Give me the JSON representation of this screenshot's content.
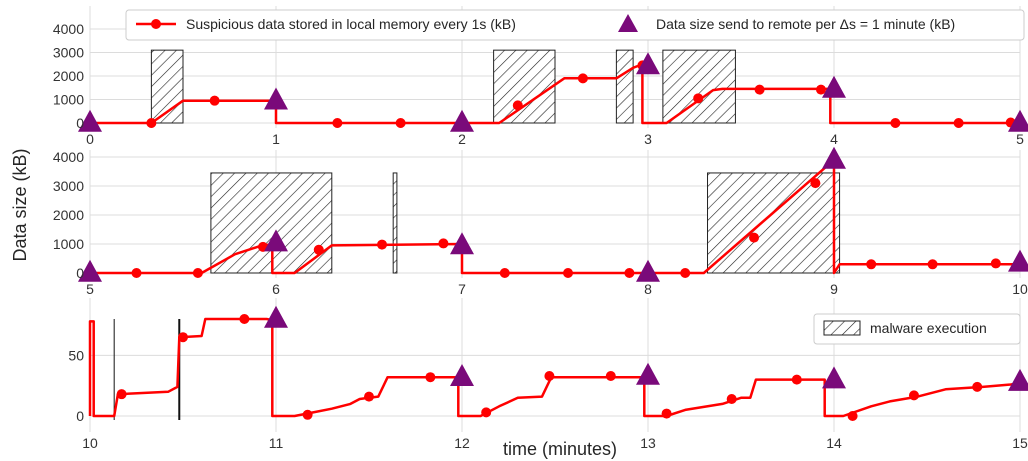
{
  "chart_data": [
    {
      "type": "line",
      "panel": 1,
      "xlim": [
        0,
        5
      ],
      "ylim": [
        0,
        4900
      ],
      "yticks": [
        0,
        1000,
        2000,
        3000,
        4000
      ],
      "xticks": [
        0,
        1,
        2,
        3,
        4,
        5
      ],
      "grid": true,
      "legend": "top",
      "series": [
        {
          "name": "Suspicious data stored in local memory every 1s (kB)",
          "color": "#ff0000",
          "line": [
            [
              0,
              0
            ],
            [
              0.33,
              0
            ],
            [
              0.5,
              950
            ],
            [
              1,
              950
            ],
            [
              1,
              0
            ],
            [
              2.2,
              0
            ],
            [
              2.55,
              1900
            ],
            [
              2.83,
              1900
            ],
            [
              2.92,
              2350
            ],
            [
              2.97,
              2500
            ],
            [
              2.97,
              0
            ],
            [
              3.1,
              0
            ],
            [
              3.35,
              1400
            ],
            [
              3.4,
              1450
            ],
            [
              3.98,
              1450
            ],
            [
              3.98,
              0
            ],
            [
              5,
              0
            ],
            [
              5,
              50
            ]
          ],
          "markers": [
            [
              0.33,
              0
            ],
            [
              0.67,
              950
            ],
            [
              1.33,
              0
            ],
            [
              1.67,
              0
            ],
            [
              2.3,
              750
            ],
            [
              2.65,
              1900
            ],
            [
              2.97,
              2450
            ],
            [
              3.27,
              1050
            ],
            [
              3.6,
              1420
            ],
            [
              3.93,
              1420
            ],
            [
              4.33,
              0
            ],
            [
              4.67,
              0
            ],
            [
              4.95,
              20
            ]
          ]
        },
        {
          "name": "Data size send to remote per Δs = 1 minute (kB)",
          "color": "#7a0a7a",
          "points": [
            [
              0,
              0
            ],
            [
              1,
              950
            ],
            [
              2,
              0
            ],
            [
              3,
              2450
            ],
            [
              4,
              1450
            ],
            [
              5,
              0
            ]
          ]
        }
      ],
      "shaded": [
        [
          0.33,
          0.5
        ],
        [
          2.17,
          2.5
        ],
        [
          2.83,
          2.92
        ],
        [
          3.08,
          3.47
        ]
      ],
      "shaded_top": 3100
    },
    {
      "type": "line",
      "panel": 2,
      "xlim": [
        5,
        10
      ],
      "ylim": [
        0,
        4100
      ],
      "yticks": [
        0,
        1000,
        2000,
        3000,
        4000
      ],
      "xticks": [
        5,
        6,
        7,
        8,
        9,
        10
      ],
      "grid": true,
      "series": [
        {
          "name": "Suspicious data stored in local memory every 1s (kB)",
          "color": "#ff0000",
          "line": [
            [
              5,
              0
            ],
            [
              5.6,
              0
            ],
            [
              5.78,
              650
            ],
            [
              5.9,
              900
            ],
            [
              5.98,
              1000
            ],
            [
              5.98,
              0
            ],
            [
              6.1,
              0
            ],
            [
              6.3,
              950
            ],
            [
              7,
              1000
            ],
            [
              7,
              0
            ],
            [
              8.3,
              0
            ],
            [
              9,
              3900
            ],
            [
              9,
              0
            ],
            [
              9.03,
              300
            ],
            [
              10,
              300
            ]
          ],
          "markers": [
            [
              5.25,
              0
            ],
            [
              5.58,
              0
            ],
            [
              5.93,
              900
            ],
            [
              6.23,
              800
            ],
            [
              6.57,
              980
            ],
            [
              6.9,
              1020
            ],
            [
              7.23,
              0
            ],
            [
              7.57,
              0
            ],
            [
              7.9,
              0
            ],
            [
              8.2,
              0
            ],
            [
              8.57,
              1220
            ],
            [
              8.9,
              3100
            ],
            [
              9.2,
              300
            ],
            [
              9.53,
              300
            ],
            [
              9.87,
              330
            ]
          ]
        },
        {
          "name": "Data size send to remote per Δs = 1 minute (kB)",
          "color": "#7a0a7a",
          "points": [
            [
              5,
              0
            ],
            [
              6,
              1050
            ],
            [
              7,
              950
            ],
            [
              8,
              0
            ],
            [
              9,
              3900
            ],
            [
              10,
              350
            ]
          ]
        }
      ],
      "shaded": [
        [
          5.65,
          6.3
        ],
        [
          6.63,
          6.65
        ],
        [
          8.32,
          9.03
        ]
      ],
      "shaded_top": 3450
    },
    {
      "type": "line",
      "panel": 3,
      "xlim": [
        10,
        15
      ],
      "ylim": [
        -5,
        88
      ],
      "yticks": [
        0,
        50
      ],
      "xticks": [
        10,
        11,
        12,
        13,
        14,
        15
      ],
      "xlabel": "time (minutes)",
      "grid": true,
      "legend": "top-right",
      "series": [
        {
          "name": "Suspicious data stored in local memory every 1s (kB)",
          "color": "#ff0000",
          "line": [
            [
              10,
              0
            ],
            [
              10,
              78
            ],
            [
              10.02,
              78
            ],
            [
              10.02,
              0
            ],
            [
              10.13,
              0
            ],
            [
              10.15,
              18
            ],
            [
              10.42,
              20
            ],
            [
              10.47,
              24
            ],
            [
              10.48,
              65
            ],
            [
              10.6,
              66
            ],
            [
              10.62,
              80
            ],
            [
              10.95,
              80
            ],
            [
              10.98,
              79
            ],
            [
              10.98,
              0
            ],
            [
              11.1,
              0
            ],
            [
              11.2,
              3
            ],
            [
              11.3,
              6
            ],
            [
              11.4,
              10
            ],
            [
              11.45,
              14
            ],
            [
              11.5,
              15
            ],
            [
              11.55,
              16
            ],
            [
              11.6,
              32
            ],
            [
              11.98,
              32
            ],
            [
              11.98,
              0
            ],
            [
              12.1,
              0
            ],
            [
              12.2,
              8
            ],
            [
              12.3,
              15
            ],
            [
              12.43,
              16
            ],
            [
              12.48,
              32
            ],
            [
              12.98,
              32
            ],
            [
              12.98,
              0
            ],
            [
              13.1,
              0
            ],
            [
              13.2,
              5
            ],
            [
              13.4,
              10
            ],
            [
              13.5,
              15
            ],
            [
              13.55,
              15
            ],
            [
              13.58,
              30
            ],
            [
              13.95,
              30
            ],
            [
              13.95,
              0
            ],
            [
              14.05,
              0
            ],
            [
              14.2,
              8
            ],
            [
              14.3,
              12
            ],
            [
              14.45,
              16
            ],
            [
              14.6,
              22
            ],
            [
              14.8,
              24
            ],
            [
              14.95,
              26
            ],
            [
              15,
              27
            ]
          ],
          "markers": [
            [
              10.17,
              18
            ],
            [
              10.5,
              65
            ],
            [
              10.83,
              80
            ],
            [
              11.17,
              1
            ],
            [
              11.5,
              16
            ],
            [
              11.83,
              32
            ],
            [
              12.13,
              3
            ],
            [
              12.47,
              33
            ],
            [
              12.8,
              33
            ],
            [
              13.1,
              2
            ],
            [
              13.45,
              14
            ],
            [
              13.8,
              30
            ],
            [
              14.1,
              0
            ],
            [
              14.43,
              17
            ],
            [
              14.77,
              24
            ]
          ]
        },
        {
          "name": "Data size send to remote per Δs = 1 minute (kB)",
          "color": "#7a0a7a",
          "points": [
            [
              11,
              80
            ],
            [
              12,
              32
            ],
            [
              13,
              33
            ],
            [
              14,
              30
            ],
            [
              15,
              28
            ]
          ]
        }
      ],
      "vlines": [
        10.13,
        10.48
      ],
      "legend_entry": "malware execution"
    }
  ],
  "ylabel": "Data size (kB)",
  "xlabel": "time (minutes)",
  "legend": {
    "red_line": "Suspicious data stored in local memory every 1s (kB)",
    "purple_triangle": "Data size send to remote per Δs = 1 minute (kB)",
    "hatch": "malware execution"
  },
  "colors": {
    "line": "#ff0000",
    "triangle": "#7a0a7a",
    "grid": "#dcdcdc"
  }
}
